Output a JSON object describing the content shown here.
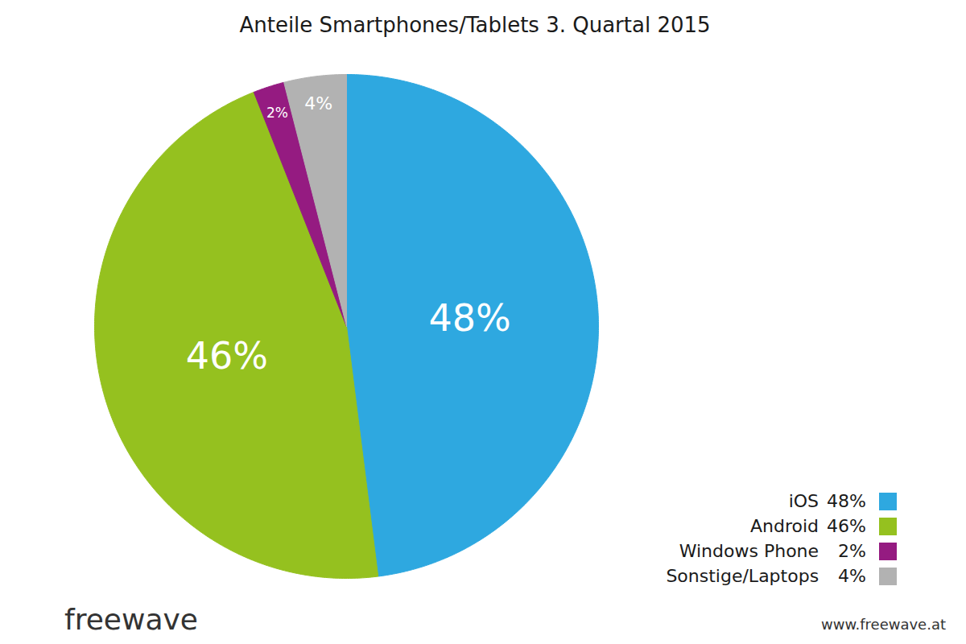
{
  "chart_data": {
    "type": "pie",
    "title": "Anteile Smartphones/Tablets 3. Quartal 2015",
    "categories": [
      "iOS",
      "Android",
      "Windows Phone",
      "Sonstige/Laptops"
    ],
    "values": [
      48,
      46,
      2,
      4
    ],
    "value_labels": [
      "48%",
      "46%",
      "2%",
      "4%"
    ],
    "colors": [
      "#2ea8e0",
      "#95c11f",
      "#951b81",
      "#b2b2b2"
    ],
    "data_labels": true,
    "legend": "bottom-right",
    "annotations": [
      "freewave",
      "www.freewave.at"
    ]
  }
}
